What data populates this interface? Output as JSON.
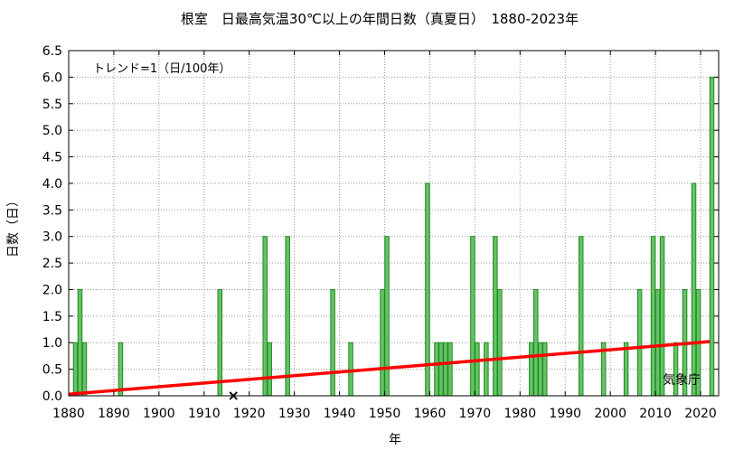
{
  "chart_data": {
    "type": "bar",
    "title": "根室　日最高気温30℃以上の年間日数（真夏日）　1880-2023年",
    "xlabel": "年",
    "ylabel": "日数（日）",
    "trend_label": "トレンド=1（日/100年）",
    "source_label": "気象庁",
    "xlim": [
      1880,
      2024
    ],
    "ylim": [
      0,
      6.5
    ],
    "x_ticks": [
      1880,
      1890,
      1900,
      1910,
      1920,
      1930,
      1940,
      1950,
      1960,
      1970,
      1980,
      1990,
      2000,
      2010,
      2020
    ],
    "y_ticks": [
      0.0,
      0.5,
      1.0,
      1.5,
      2.0,
      2.5,
      3.0,
      3.5,
      4.0,
      4.5,
      5.0,
      5.5,
      6.0,
      6.5
    ],
    "grid": true,
    "series": [
      {
        "values": [
          {
            "x": 1881,
            "y": 1
          },
          {
            "x": 1882,
            "y": 2
          },
          {
            "x": 1883,
            "y": 1
          },
          {
            "x": 1891,
            "y": 1
          },
          {
            "x": 1913,
            "y": 2
          },
          {
            "x": 1923,
            "y": 3
          },
          {
            "x": 1924,
            "y": 1
          },
          {
            "x": 1928,
            "y": 3
          },
          {
            "x": 1938,
            "y": 2
          },
          {
            "x": 1942,
            "y": 1
          },
          {
            "x": 1949,
            "y": 2
          },
          {
            "x": 1950,
            "y": 3
          },
          {
            "x": 1959,
            "y": 4
          },
          {
            "x": 1961,
            "y": 1
          },
          {
            "x": 1962,
            "y": 1
          },
          {
            "x": 1963,
            "y": 1
          },
          {
            "x": 1964,
            "y": 1
          },
          {
            "x": 1969,
            "y": 3
          },
          {
            "x": 1970,
            "y": 1
          },
          {
            "x": 1972,
            "y": 1
          },
          {
            "x": 1974,
            "y": 3
          },
          {
            "x": 1975,
            "y": 2
          },
          {
            "x": 1982,
            "y": 1
          },
          {
            "x": 1983,
            "y": 2
          },
          {
            "x": 1984,
            "y": 1
          },
          {
            "x": 1985,
            "y": 1
          },
          {
            "x": 1993,
            "y": 3
          },
          {
            "x": 1998,
            "y": 1
          },
          {
            "x": 2003,
            "y": 1
          },
          {
            "x": 2006,
            "y": 2
          },
          {
            "x": 2009,
            "y": 3
          },
          {
            "x": 2010,
            "y": 2
          },
          {
            "x": 2011,
            "y": 3
          },
          {
            "x": 2014,
            "y": 1
          },
          {
            "x": 2016,
            "y": 2
          },
          {
            "x": 2018,
            "y": 4
          },
          {
            "x": 2019,
            "y": 2
          },
          {
            "x": 2022,
            "y": 6
          }
        ],
        "color": "#66c266",
        "edge_color": "#1f8a1f"
      }
    ],
    "trend": {
      "from": {
        "x": 1880,
        "y": 0.03
      },
      "to": {
        "x": 2022,
        "y": 1.02
      },
      "color": "#ff0000"
    },
    "missing": [
      {
        "x": 1916,
        "y": 0,
        "marker": "×"
      }
    ]
  }
}
